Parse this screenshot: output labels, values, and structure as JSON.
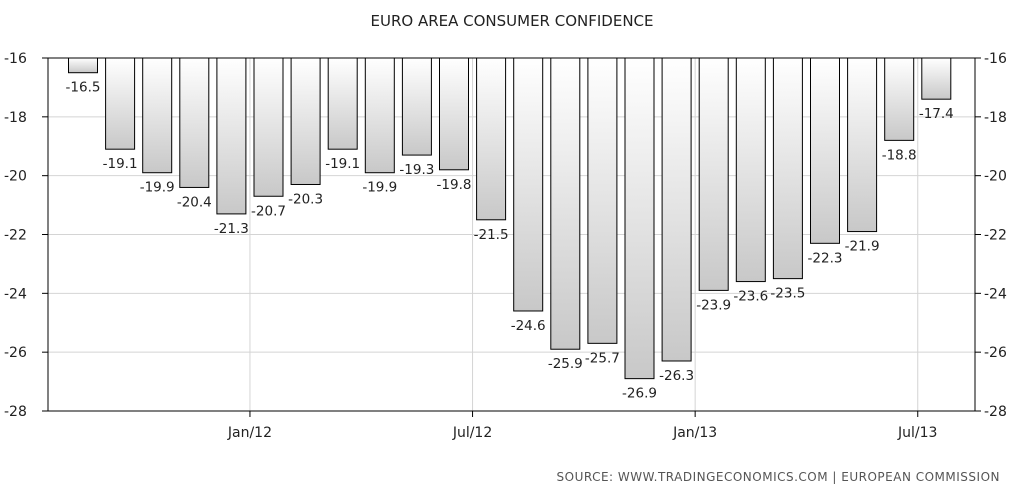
{
  "chart_data": {
    "type": "bar",
    "title": "EURO AREA CONSUMER CONFIDENCE",
    "source": "SOURCE:  WWW.TRADINGECONOMICS.COM  |  EUROPEAN  COMMISSION",
    "xlabel": "",
    "ylabel": "",
    "ylim": [
      -28,
      -16
    ],
    "yticks": [
      -16,
      -18,
      -20,
      -22,
      -24,
      -26,
      -28
    ],
    "ytick_labels": [
      "-16",
      "-18",
      "-20",
      "-22",
      "-24",
      "-26",
      "-28"
    ],
    "x_tick_labels": [
      {
        "label": "Jan/12",
        "after_index": 4
      },
      {
        "label": "Jul/12",
        "after_index": 10
      },
      {
        "label": "Jan/13",
        "after_index": 16
      },
      {
        "label": "Jul/13",
        "after_index": 22
      }
    ],
    "values": [
      -16.5,
      -19.1,
      -19.9,
      -20.4,
      -21.3,
      -20.7,
      -20.3,
      -19.1,
      -19.9,
      -19.3,
      -19.8,
      -21.5,
      -24.6,
      -25.9,
      -25.7,
      -26.9,
      -26.3,
      -23.9,
      -23.6,
      -23.5,
      -22.3,
      -21.9,
      -18.8,
      -17.4
    ],
    "data_labels": [
      "-16.5",
      "-19.1",
      "-19.9",
      "-20.4",
      "-21.3",
      "-20.7",
      "-20.3",
      "-19.1",
      "-19.9",
      "-19.3",
      "-19.8",
      "-21.5",
      "-24.6",
      "-25.9",
      "-25.7",
      "-26.9",
      "-26.3",
      "-23.9",
      "-23.6",
      "-23.5",
      "-22.3",
      "-21.9",
      "-18.8",
      "-17.4"
    ],
    "grid": true,
    "axes": "left-and-right",
    "colors": {
      "bar_fill_top": "#ffffff",
      "bar_fill_bottom": "#c8c8c8",
      "bar_stroke": "#000000",
      "grid": "#d4d4d4"
    }
  }
}
